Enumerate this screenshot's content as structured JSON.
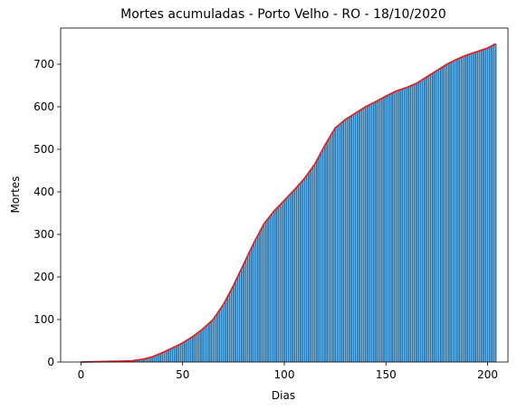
{
  "chart_data": {
    "type": "bar",
    "title": "Mortes acumuladas - Porto Velho - RO - 18/10/2020",
    "xlabel": "Dias",
    "ylabel": "Mortes",
    "xlim": [
      -10,
      210
    ],
    "ylim": [
      0,
      785
    ],
    "xticks": [
      0,
      50,
      100,
      150,
      200
    ],
    "yticks": [
      0,
      100,
      200,
      300,
      400,
      500,
      600,
      700
    ],
    "grid": false,
    "bar_color": "#1f77b4",
    "line_color": "#d62728",
    "curve_points": [
      [
        0,
        0
      ],
      [
        10,
        1
      ],
      [
        20,
        2
      ],
      [
        25,
        3
      ],
      [
        30,
        6
      ],
      [
        35,
        12
      ],
      [
        40,
        22
      ],
      [
        45,
        33
      ],
      [
        50,
        45
      ],
      [
        55,
        60
      ],
      [
        60,
        78
      ],
      [
        65,
        100
      ],
      [
        70,
        135
      ],
      [
        75,
        180
      ],
      [
        80,
        230
      ],
      [
        85,
        280
      ],
      [
        90,
        325
      ],
      [
        95,
        355
      ],
      [
        100,
        380
      ],
      [
        105,
        405
      ],
      [
        110,
        432
      ],
      [
        115,
        465
      ],
      [
        120,
        510
      ],
      [
        125,
        550
      ],
      [
        130,
        570
      ],
      [
        135,
        585
      ],
      [
        140,
        600
      ],
      [
        145,
        612
      ],
      [
        150,
        625
      ],
      [
        155,
        637
      ],
      [
        160,
        645
      ],
      [
        165,
        655
      ],
      [
        170,
        670
      ],
      [
        175,
        685
      ],
      [
        180,
        700
      ],
      [
        185,
        712
      ],
      [
        190,
        722
      ],
      [
        195,
        730
      ],
      [
        200,
        738
      ],
      [
        204,
        748
      ]
    ],
    "bars": {
      "x_start": 0,
      "x_end": 204,
      "values_note_excluded": true
    }
  }
}
